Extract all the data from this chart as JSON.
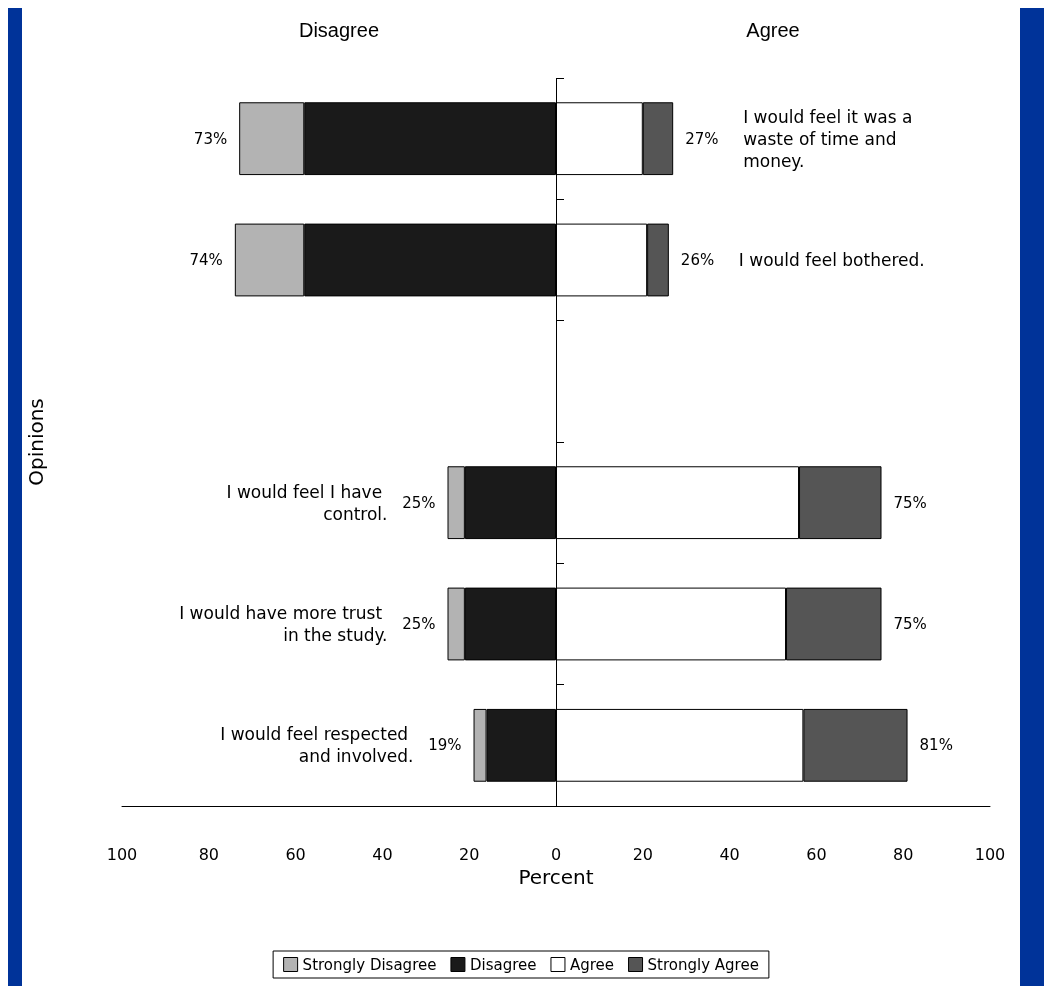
{
  "chart_data": {
    "type": "bar",
    "orientation": "horizontal",
    "stacked": true,
    "xlabel": "Percent",
    "ylabel": "Opinions",
    "categories": [
      "I would feel it was a waste of time and money.",
      "I would feel bothered.",
      null,
      "I would feel I have control.",
      "I would have more trust in the study.",
      "I would feel respected and involved."
    ],
    "series": [
      {
        "name": "Disagree",
        "color": "#1a1a1a",
        "values": [
          -58,
          -58,
          null,
          -21,
          -21,
          -16
        ]
      },
      {
        "name": "Strongly Disagree",
        "color": "#b3b3b3",
        "values": [
          -15,
          -16,
          null,
          -4,
          -4,
          -3
        ]
      },
      {
        "name": "Agree",
        "color": "#ffffff",
        "values": [
          20,
          21,
          null,
          56,
          53,
          57
        ]
      },
      {
        "name": "Strongly Agree",
        "color": "#555555",
        "values": [
          7,
          5,
          null,
          19,
          22,
          24
        ]
      }
    ],
    "xlim": [
      -100,
      100
    ],
    "xticks": [
      {
        "value": -100,
        "label": "100"
      },
      {
        "value": -80,
        "label": "80"
      },
      {
        "value": -60,
        "label": "60"
      },
      {
        "value": -40,
        "label": "40"
      },
      {
        "value": -20,
        "label": "20"
      },
      0,
      20,
      40,
      60,
      80,
      100
    ],
    "annotations": [
      "Disagree",
      "Agree",
      {
        "text": "73%",
        "x": -73,
        "y": "I would feel it was a waste of time and money."
      },
      {
        "text": "27%",
        "x": 27,
        "y": "I would feel it was a waste of time and money."
      },
      {
        "text": "74%",
        "x": -74,
        "y": "I would feel bothered."
      },
      {
        "text": "26%",
        "x": 26,
        "y": "I would feel bothered."
      },
      {
        "text": "25%",
        "x": -25,
        "y": "I would feel I have control."
      },
      {
        "text": "75%",
        "x": 75,
        "y": "I would feel I have control."
      },
      {
        "text": "25%",
        "x": -25,
        "y": "I would have more trust in the study."
      },
      {
        "text": "75%",
        "x": 75,
        "y": "I would have more trust in the study."
      },
      {
        "text": "19%",
        "x": -19,
        "y": "I would feel respected and involved."
      },
      {
        "text": "81%",
        "x": 81,
        "y": "I would feel respected and involved."
      }
    ],
    "ref_lines": [
      {
        "axis": "x",
        "value": 0,
        "color": "#000000"
      }
    ],
    "grid": false,
    "legend": "bottom"
  }
}
